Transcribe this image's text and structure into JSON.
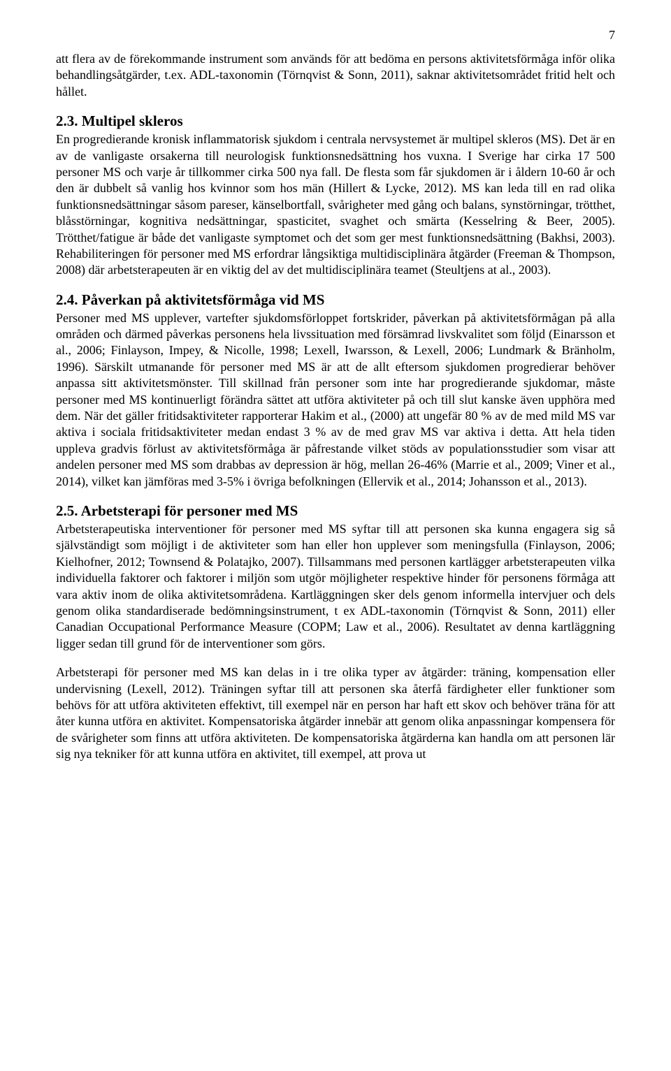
{
  "page_number": "7",
  "para1": "att flera av de förekommande instrument som används för att bedöma en persons aktivitetsförmåga inför olika behandlingsåtgärder, t.ex. ADL-taxonomin (Törnqvist & Sonn, 2011), saknar aktivitetsområdet fritid helt och hållet.",
  "heading1": "2.3. Multipel skleros",
  "para2": "En progredierande kronisk inflammatorisk sjukdom i centrala nervsystemet är multipel skleros (MS). Det är en av de vanligaste orsakerna till neurologisk funktionsnedsättning hos vuxna. I Sverige har cirka 17 500 personer MS och varje år tillkommer cirka 500 nya fall. De flesta som får sjukdomen är i åldern 10-60 år och den är dubbelt så vanlig hos kvinnor som hos män (Hillert & Lycke, 2012). MS kan leda till en rad olika funktionsnedsättningar såsom pareser, känselbortfall, svårigheter med gång och balans, synstörningar, trötthet, blåsstörningar, kognitiva nedsättningar, spasticitet, svaghet och smärta (Kesselring & Beer, 2005). Trötthet/fatigue är både det vanligaste symptomet och det som ger mest funktionsnedsättning (Bakhsi, 2003). Rehabiliteringen för personer med MS erfordrar långsiktiga multidisciplinära åtgärder (Freeman & Thompson, 2008) där arbetsterapeuten är en viktig del av det multidisciplinära teamet (Steultjens at al., 2003).",
  "heading2": "2.4. Påverkan på aktivitetsförmåga vid MS",
  "para3": "Personer med MS upplever, vartefter sjukdomsförloppet fortskrider, påverkan på aktivitetsförmågan på alla områden och därmed påverkas personens hela livssituation med försämrad livskvalitet som följd (Einarsson et al., 2006; Finlayson, Impey, & Nicolle, 1998; Lexell, Iwarsson, & Lexell, 2006; Lundmark & Bränholm, 1996). Särskilt utmanande för personer med MS är att de allt eftersom sjukdomen progredierar behöver anpassa sitt aktivitetsmönster. Till skillnad från personer som inte har progredierande sjukdomar, måste personer med MS kontinuerligt förändra sättet att utföra aktiviteter på och till slut kanske även upphöra med dem. När det gäller fritidsaktiviteter rapporterar Hakim et al., (2000) att ungefär 80 % av de med mild MS var aktiva i sociala fritidsaktiviteter medan endast 3 % av de med grav MS var aktiva i detta. Att hela tiden uppleva gradvis förlust av aktivitetsförmåga är påfrestande vilket stöds av populationsstudier som visar att andelen personer med MS som drabbas av depression är hög, mellan 26-46% (Marrie et al., 2009; Viner et al., 2014), vilket kan jämföras med 3-5% i övriga befolkningen (Ellervik et al., 2014; Johansson et al., 2013).",
  "heading3": "2.5. Arbetsterapi för personer med MS",
  "para4": "Arbetsterapeutiska interventioner för personer med MS syftar till att personen ska kunna engagera sig så självständigt som möjligt i de aktiviteter som han eller hon upplever som meningsfulla (Finlayson, 2006; Kielhofner, 2012; Townsend & Polatajko, 2007). Tillsammans med personen kartlägger arbetsterapeuten vilka individuella faktorer och faktorer i miljön som utgör möjligheter respektive hinder för personens förmåga att vara aktiv inom de olika aktivitetsområdena. Kartläggningen sker dels genom informella intervjuer och dels genom olika standardiserade bedömningsinstrument, t ex ADL-taxonomin (Törnqvist & Sonn, 2011) eller Canadian Occupational Performance Measure (COPM; Law et al., 2006). Resultatet av denna kartläggning ligger sedan till grund för de interventioner som görs.",
  "para5": "Arbetsterapi för personer med MS kan delas in i tre olika typer av åtgärder: träning, kompensation eller undervisning (Lexell, 2012). Träningen syftar till att personen ska återfå färdigheter eller funktioner som behövs för att utföra aktiviteten effektivt, till exempel när en person har haft ett skov och behöver träna för att åter kunna utföra en aktivitet. Kompensatoriska åtgärder innebär att genom olika anpassningar kompensera för de svårigheter som finns att utföra aktiviteten. De kompensatoriska åtgärderna kan handla om att personen lär sig nya tekniker för att kunna utföra en aktivitet, till exempel, att prova ut"
}
